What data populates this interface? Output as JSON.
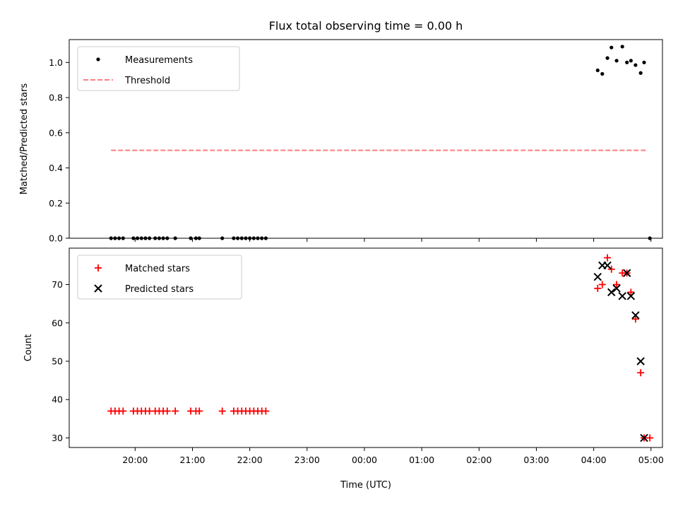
{
  "figure": {
    "title": "Flux total observing time = 0.00 h"
  },
  "chart_data": [
    {
      "type": "scatter",
      "name": "flux-ratio",
      "title": "Flux total observing time = 0.00 h",
      "xlabel": "",
      "ylabel": "Matched/Predicted stars",
      "xlim_hours": [
        18.85,
        29.2
      ],
      "ylim": [
        0,
        1.13
      ],
      "yticks": [
        0.0,
        0.2,
        0.4,
        0.6,
        0.8,
        1.0
      ],
      "ytick_labels": [
        "0.0",
        "0.2",
        "0.4",
        "0.6",
        "0.8",
        "1.0"
      ],
      "legend_position": "upper-left",
      "series": [
        {
          "name": "Measurements",
          "marker": "dot",
          "color": "#000000",
          "x": [
            19.58,
            19.65,
            19.72,
            19.79,
            19.97,
            20.04,
            20.11,
            20.18,
            20.25,
            20.35,
            20.42,
            20.49,
            20.56,
            20.7,
            20.97,
            21.06,
            21.12,
            21.52,
            21.72,
            21.79,
            21.86,
            21.93,
            22.0,
            22.07,
            22.14,
            22.21,
            22.28,
            28.07,
            28.15,
            28.24,
            28.31,
            28.4,
            28.5,
            28.58,
            28.65,
            28.73,
            28.82,
            28.88,
            28.98
          ],
          "y": [
            0,
            0,
            0,
            0,
            0,
            0,
            0,
            0,
            0,
            0,
            0,
            0,
            0,
            0,
            0,
            0,
            0,
            0,
            0,
            0,
            0,
            0,
            0,
            0,
            0,
            0,
            0,
            0.955,
            0.935,
            1.025,
            1.085,
            1.01,
            1.09,
            1.0,
            1.01,
            0.985,
            0.94,
            1.0,
            0.0
          ]
        },
        {
          "name": "Threshold",
          "marker": "dashed-line",
          "color": "#ff7f7f",
          "x": [
            19.58,
            28.92
          ],
          "y": [
            0.5,
            0.5
          ]
        }
      ]
    },
    {
      "type": "scatter",
      "name": "star-counts",
      "xlabel": "Time (UTC)",
      "ylabel": "Count",
      "xlim_hours": [
        18.85,
        29.2
      ],
      "ylim": [
        27.5,
        79.5
      ],
      "yticks": [
        30,
        40,
        50,
        60,
        70
      ],
      "ytick_labels": [
        "30",
        "40",
        "50",
        "60",
        "70"
      ],
      "xticks_hours": [
        20,
        21,
        22,
        23,
        24,
        25,
        26,
        27,
        28,
        29
      ],
      "xtick_labels": [
        "20:00",
        "21:00",
        "22:00",
        "23:00",
        "00:00",
        "01:00",
        "02:00",
        "03:00",
        "04:00",
        "05:00"
      ],
      "legend_position": "upper-left",
      "series": [
        {
          "name": "Matched stars",
          "marker": "plus",
          "color": "#ff0000",
          "x": [
            19.58,
            19.65,
            19.72,
            19.79,
            19.97,
            20.04,
            20.11,
            20.18,
            20.25,
            20.35,
            20.42,
            20.49,
            20.56,
            20.7,
            20.97,
            21.06,
            21.12,
            21.52,
            21.72,
            21.79,
            21.86,
            21.93,
            22.0,
            22.07,
            22.14,
            22.21,
            22.28,
            28.07,
            28.15,
            28.24,
            28.31,
            28.4,
            28.5,
            28.58,
            28.65,
            28.73,
            28.82,
            28.88,
            28.98
          ],
          "y": [
            37,
            37,
            37,
            37,
            37,
            37,
            37,
            37,
            37,
            37,
            37,
            37,
            37,
            37,
            37,
            37,
            37,
            37,
            37,
            37,
            37,
            37,
            37,
            37,
            37,
            37,
            37,
            69,
            70,
            77,
            74,
            70,
            73,
            73,
            68,
            61,
            47,
            30,
            30
          ]
        },
        {
          "name": "Predicted stars",
          "marker": "x",
          "color": "#000000",
          "x": [
            28.07,
            28.15,
            28.24,
            28.31,
            28.4,
            28.5,
            28.58,
            28.65,
            28.73,
            28.82,
            28.88
          ],
          "y": [
            72,
            75,
            75,
            68,
            69,
            67,
            73,
            67,
            62,
            50,
            30
          ]
        }
      ]
    }
  ]
}
